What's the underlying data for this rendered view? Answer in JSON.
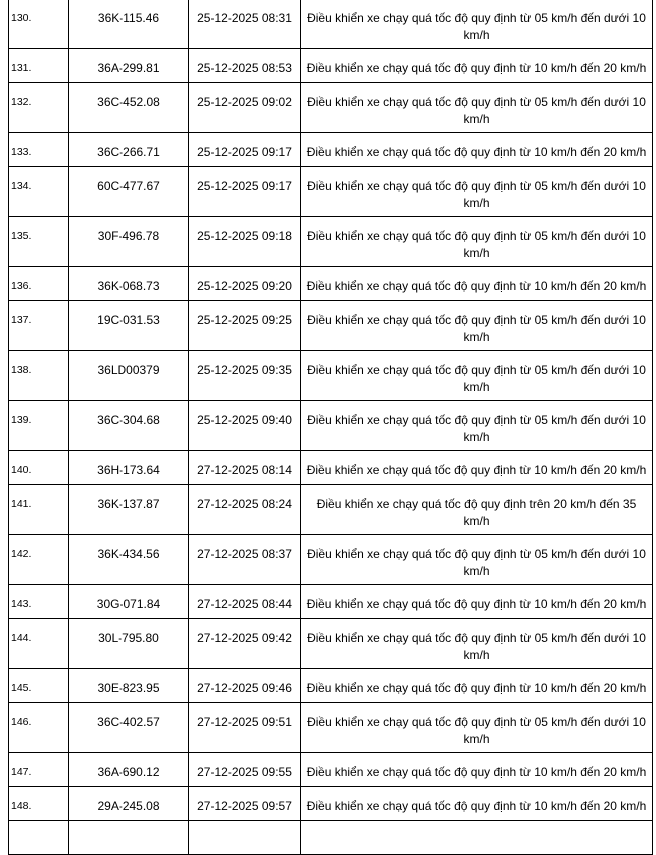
{
  "rows": [
    {
      "no": "130.",
      "plate": "36K-115.46",
      "time": "25-12-2025 08:31",
      "violation": "Điều khiển xe chạy quá tốc độ quy định từ 05 km/h đến dưới 10 km/h"
    },
    {
      "no": "131.",
      "plate": "36A-299.81",
      "time": "25-12-2025 08:53",
      "violation": "Điều khiển xe chạy quá tốc độ quy định từ 10 km/h đến 20 km/h"
    },
    {
      "no": "132.",
      "plate": "36C-452.08",
      "time": "25-12-2025 09:02",
      "violation": "Điều khiển xe chạy quá tốc độ quy định từ 05 km/h đến dưới 10 km/h"
    },
    {
      "no": "133.",
      "plate": "36C-266.71",
      "time": "25-12-2025 09:17",
      "violation": "Điều khiển xe chạy quá tốc độ quy định từ 10 km/h đến 20 km/h"
    },
    {
      "no": "134.",
      "plate": "60C-477.67",
      "time": "25-12-2025 09:17",
      "violation": "Điều khiển xe chạy quá tốc độ quy định từ 05 km/h đến dưới 10 km/h"
    },
    {
      "no": "135.",
      "plate": "30F-496.78",
      "time": "25-12-2025 09:18",
      "violation": "Điều khiển xe chạy quá tốc độ quy định từ 05 km/h đến dưới 10 km/h"
    },
    {
      "no": "136.",
      "plate": "36K-068.73",
      "time": "25-12-2025 09:20",
      "violation": "Điều khiển xe chạy quá tốc độ quy định từ 10 km/h đến 20 km/h"
    },
    {
      "no": "137.",
      "plate": "19C-031.53",
      "time": "25-12-2025 09:25",
      "violation": "Điều khiển xe chạy quá tốc độ quy định từ 05 km/h đến dưới 10 km/h"
    },
    {
      "no": "138.",
      "plate": "36LD00379",
      "time": "25-12-2025 09:35",
      "violation": "Điều khiển xe chạy quá tốc độ quy định từ 05 km/h đến dưới 10 km/h"
    },
    {
      "no": "139.",
      "plate": "36C-304.68",
      "time": "25-12-2025 09:40",
      "violation": "Điều khiển xe chạy quá tốc độ quy định từ 05 km/h đến dưới 10 km/h"
    },
    {
      "no": "140.",
      "plate": "36H-173.64",
      "time": "27-12-2025 08:14",
      "violation": "Điều khiển xe chạy quá tốc độ quy định từ 10 km/h đến 20 km/h"
    },
    {
      "no": "141.",
      "plate": "36K-137.87",
      "time": "27-12-2025 08:24",
      "violation": "Điều khiển xe chạy quá tốc độ quy định trên 20 km/h đến 35 km/h"
    },
    {
      "no": "142.",
      "plate": "36K-434.56",
      "time": "27-12-2025 08:37",
      "violation": "Điều khiển xe chạy quá tốc độ quy định từ 05 km/h đến dưới 10 km/h"
    },
    {
      "no": "143.",
      "plate": "30G-071.84",
      "time": "27-12-2025 08:44",
      "violation": "Điều khiển xe chạy quá tốc độ quy định từ 10 km/h đến 20 km/h"
    },
    {
      "no": "144.",
      "plate": "30L-795.80",
      "time": "27-12-2025 09:42",
      "violation": "Điều khiển xe chạy quá tốc độ quy định từ 05 km/h đến dưới 10 km/h"
    },
    {
      "no": "145.",
      "plate": "30E-823.95",
      "time": "27-12-2025 09:46",
      "violation": "Điều khiển xe chạy quá tốc độ quy định từ 10 km/h đến 20 km/h"
    },
    {
      "no": "146.",
      "plate": "36C-402.57",
      "time": "27-12-2025 09:51",
      "violation": "Điều khiển xe chạy quá tốc độ quy định từ 05 km/h đến dưới 10 km/h"
    },
    {
      "no": "147.",
      "plate": "36A-690.12",
      "time": "27-12-2025 09:55",
      "violation": "Điều khiển xe chạy quá tốc độ quy định từ 10 km/h đến 20 km/h"
    },
    {
      "no": "148.",
      "plate": "29A-245.08",
      "time": "27-12-2025 09:57",
      "violation": "Điều khiển xe chạy quá tốc độ quy định từ 10 km/h đến 20 km/h"
    }
  ]
}
